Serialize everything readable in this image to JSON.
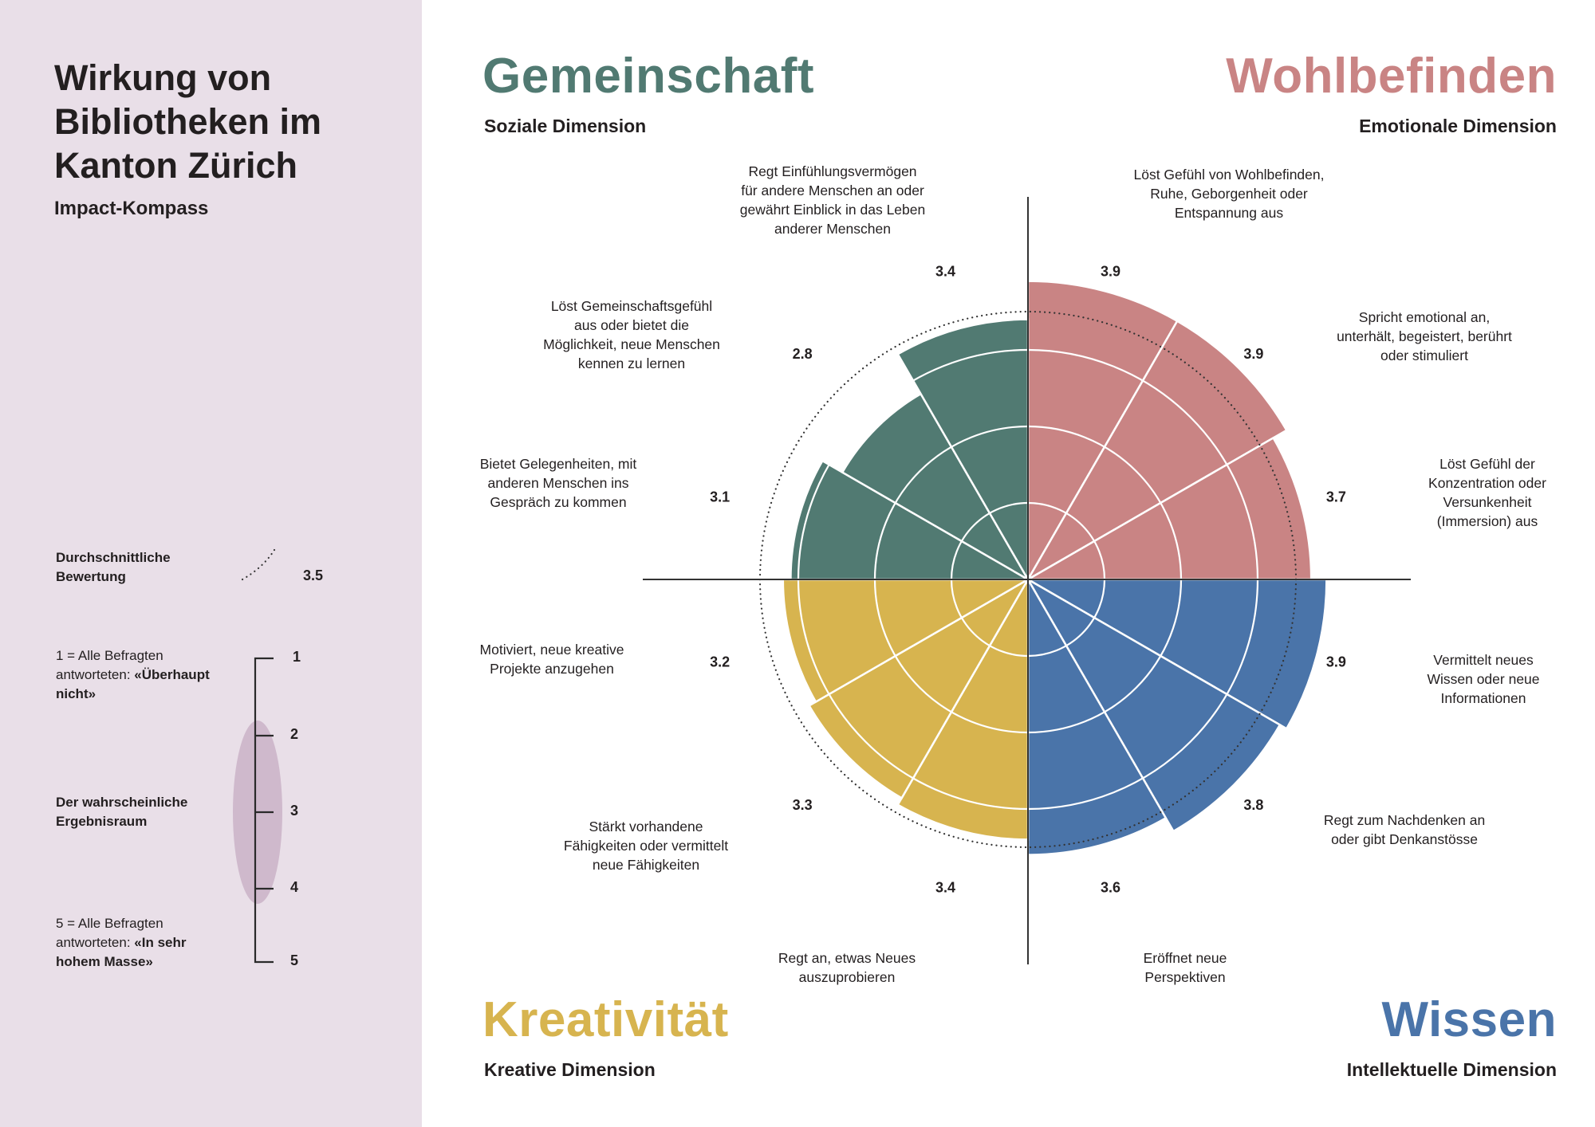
{
  "left_panel": {
    "title": "Wirkung von\nBibliotheken im\nKanton Zürich",
    "subtitle": "Impact-Kompass",
    "avg_label": "Durchschnittliche\nBewertung",
    "avg_value": "3.5",
    "scale_low_prefix": "1 = Alle Befragten\nantworteten: ",
    "scale_low_bold": "«Überhaupt\nnicht»",
    "range_label": "Der wahrscheinliche\nErgebnisraum",
    "scale_high_prefix": "5 = Alle Befragten\nantworteten: ",
    "scale_high_bold": "«In sehr\nhohem Masse»",
    "scale_ticks": [
      "1",
      "2",
      "3",
      "4",
      "5"
    ],
    "range_color": "#cfb9cc"
  },
  "dimensions": {
    "gemeinschaft": {
      "title": "Gemeinschaft",
      "subtitle": "Soziale Dimension",
      "color": "#517a72"
    },
    "wohlbefinden": {
      "title": "Wohlbefinden",
      "subtitle": "Emotionale Dimension",
      "color": "#c98484"
    },
    "kreativitaet": {
      "title": "Kreativität",
      "subtitle": "Kreative Dimension",
      "color": "#d7b44f"
    },
    "wissen": {
      "title": "Wissen",
      "subtitle": "Intellektuelle Dimension",
      "color": "#4a74a9"
    }
  },
  "chart_data": {
    "type": "polar-area",
    "title": "Impact-Kompass",
    "rlim": [
      0,
      5
    ],
    "rings": [
      1,
      2,
      3
    ],
    "average": 3.5,
    "categories": [
      "Löst Gefühl von Wohlbefinden,\nRuhe, Geborgenheit oder\nEntspannung aus",
      "Spricht emotional an,\nunterhält, begeistert, berührt\noder stimuliert",
      "Löst Gefühl der\nKonzentration oder\nVersunkenheit\n(Immersion) aus",
      "Vermittelt neues\nWissen oder neue\nInformationen",
      "Regt zum Nachdenken an\noder gibt Denkanstösse",
      "Eröffnet neue\nPerspektiven",
      "Regt an, etwas Neues\nauszuprobieren",
      "Stärkt vorhandene\nFähigkeiten oder vermittelt\nneue Fähigkeiten",
      "Motiviert, neue kreative\nProjekte anzugehen",
      "Bietet Gelegenheiten, mit\nanderen Menschen ins\nGespräch zu kommen",
      "Löst Gemeinschaftsgefühl\naus oder bietet die\nMöglichkeit, neue Menschen\nkennen zu lernen",
      "Regt Einfühlungsvermögen\nfür andere Menschen an oder\ngewährt Einblick in das Leben\nanderer Menschen"
    ],
    "values": [
      3.9,
      3.9,
      3.7,
      3.9,
      3.8,
      3.6,
      3.4,
      3.3,
      3.2,
      3.1,
      2.8,
      3.4
    ],
    "value_labels": [
      "3.9",
      "3.9",
      "3.7",
      "3.9",
      "3.8",
      "3.6",
      "3.4",
      "3.3",
      "3.2",
      "3.1",
      "2.8",
      "3.4"
    ],
    "dimension": [
      "wohlbefinden",
      "wohlbefinden",
      "wohlbefinden",
      "wissen",
      "wissen",
      "wissen",
      "kreativitaet",
      "kreativitaet",
      "kreativitaet",
      "gemeinschaft",
      "gemeinschaft",
      "gemeinschaft"
    ]
  }
}
